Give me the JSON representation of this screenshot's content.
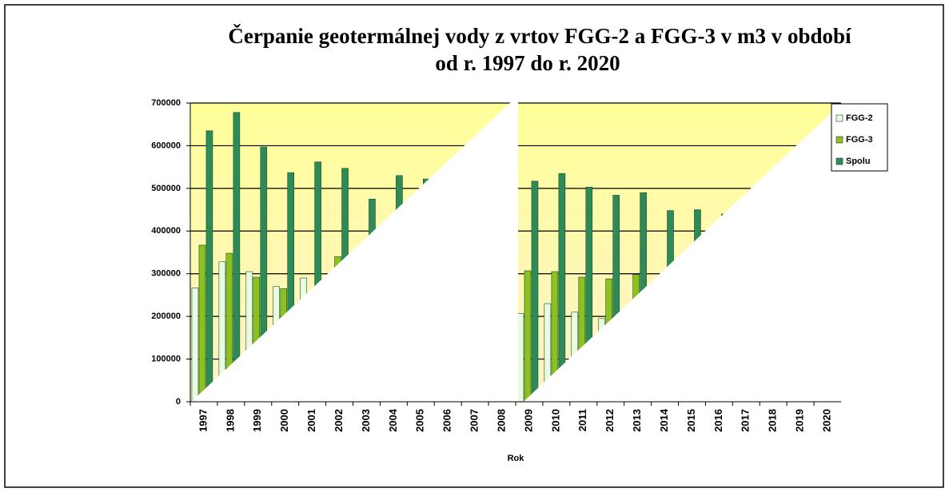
{
  "chart_data": {
    "type": "bar",
    "title": "Čerpanie geotermálnej vody z vrtov FGG-2 a FGG-3 v m3 v období",
    "subtitle": "od r. 1997 do r. 2020",
    "x_label": "Rok",
    "categories": [
      "1997",
      "1998",
      "1999",
      "2000",
      "2001",
      "2002",
      "2003",
      "2004",
      "2005",
      "2006",
      "2007",
      "2008",
      "2009",
      "2010",
      "2011",
      "2012",
      "2013",
      "2014",
      "2015",
      "2016",
      "2017",
      "2018",
      "2019",
      "2020"
    ],
    "series": [
      {
        "name": "FGG-2",
        "color": "#eafce0",
        "values": [
          267000,
          328000,
          305000,
          270000,
          290000,
          null,
          null,
          null,
          null,
          null,
          null,
          null,
          207000,
          230000,
          210000,
          195000,
          null,
          null,
          null,
          null,
          null,
          null,
          null,
          null
        ]
      },
      {
        "name": "FGG-3",
        "color": "#8cc21e",
        "values": [
          367000,
          348000,
          292000,
          265000,
          null,
          340000,
          null,
          null,
          null,
          null,
          null,
          null,
          307000,
          305000,
          292000,
          288000,
          298000,
          null,
          null,
          null,
          null,
          null,
          null,
          null
        ]
      },
      {
        "name": "Spolu",
        "color": "#2e8b57",
        "values": [
          635000,
          678000,
          597000,
          537000,
          562000,
          547000,
          475000,
          530000,
          522000,
          null,
          null,
          null,
          517000,
          535000,
          503000,
          484000,
          490000,
          448000,
          450000,
          440000,
          null,
          null,
          null,
          null
        ]
      }
    ],
    "ylim": [
      0,
      700000
    ],
    "yticks": [
      0,
      100000,
      200000,
      300000,
      400000,
      500000,
      600000,
      700000
    ],
    "grid": true,
    "legend": "right"
  }
}
